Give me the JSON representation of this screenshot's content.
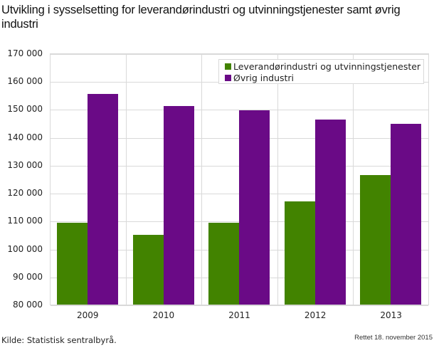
{
  "title": "Utvikling i sysselsetting for leverandørindustri og utvinningstjenester samt øvrig industri",
  "footer": {
    "source": "Kilde: Statistisk sentralbyrå.",
    "updated": "Rettet 18. november 2015"
  },
  "legend": {
    "items": [
      {
        "label": "Leverandørindustri og utvinningstjenester",
        "color": "#428300"
      },
      {
        "label": "Øvrig industri",
        "color": "#6a0a86"
      }
    ]
  },
  "axis": {
    "y_ticks": [
      "170 000",
      "160 000",
      "150 000",
      "140 000",
      "130 000",
      "120 000",
      "110 000",
      "100 000",
      "90 000",
      "80 000"
    ],
    "x_ticks": [
      "2009",
      "2010",
      "2011",
      "2012",
      "2013"
    ]
  },
  "chart_data": {
    "type": "bar",
    "title": "Utvikling i sysselsetting for leverandørindustri og utvinningstjenester samt øvrig industri",
    "xlabel": "",
    "ylabel": "",
    "categories": [
      "2009",
      "2010",
      "2011",
      "2012",
      "2013"
    ],
    "series": [
      {
        "name": "Leverandørindustri og utvinningstjenester",
        "color": "#428300",
        "values": [
          109600,
          105300,
          109600,
          117100,
          126700
        ]
      },
      {
        "name": "Øvrig industri",
        "color": "#6a0a86",
        "values": [
          155800,
          151500,
          149800,
          146500,
          144900
        ]
      }
    ],
    "ylim": [
      80000,
      170000
    ],
    "y_ticks": [
      80000,
      90000,
      100000,
      110000,
      120000,
      130000,
      140000,
      150000,
      160000,
      170000
    ],
    "grid": {
      "horizontal": true,
      "vertical": true
    },
    "legend_position": "top-right, inside plot",
    "source": "Kilde: Statistisk sentralbyrå.",
    "note": "Rettet 18. november 2015"
  }
}
